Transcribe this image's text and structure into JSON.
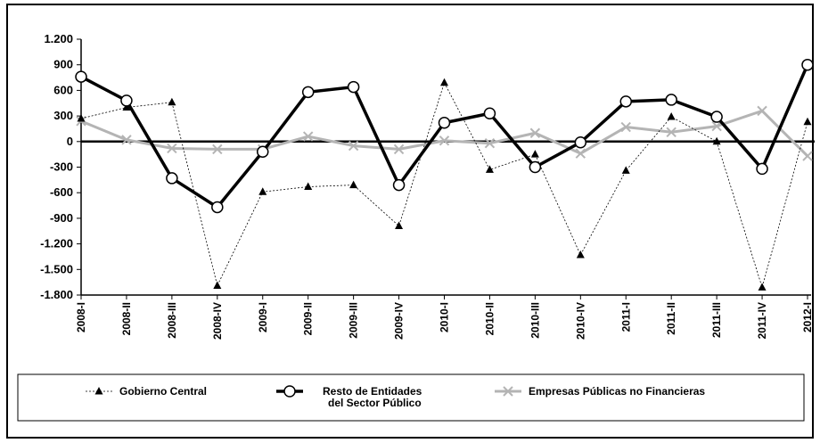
{
  "chart_data": {
    "type": "line",
    "title": "",
    "xlabel": "",
    "ylabel": "",
    "ylim": [
      -1800,
      1200
    ],
    "yticks": [
      1200,
      900,
      600,
      300,
      0,
      -300,
      -600,
      -900,
      -1200,
      -1500,
      -1800
    ],
    "ytick_labels": [
      "1.200",
      "900",
      "600",
      "300",
      "0",
      "-300",
      "-600",
      "-900",
      "-1.200",
      "-1.500",
      "-1.800"
    ],
    "categories": [
      "2008-I",
      "2008-II",
      "2008-III",
      "2008-IV",
      "2009-I",
      "2009-II",
      "2009-III",
      "2009-IV",
      "2010-I",
      "2010-II",
      "2010-III",
      "2010-IV",
      "2011-I",
      "2011-II",
      "2011-III",
      "2011-IV",
      "2012-I"
    ],
    "grid": false,
    "legend_position": "bottom",
    "series": [
      {
        "name": "Gobierno Central",
        "legend_lines": [
          "Gobierno Central"
        ],
        "color": "#000000",
        "style": "dotted",
        "marker": "triangle",
        "values": [
          270,
          400,
          460,
          -1690,
          -590,
          -530,
          -510,
          -990,
          690,
          -330,
          -150,
          -1330,
          -340,
          290,
          0,
          -1710,
          230
        ]
      },
      {
        "name": "Resto de Entidades del Sector Público",
        "legend_lines": [
          "Resto de Entidades",
          "del Sector Público"
        ],
        "color": "#000000",
        "style": "thick",
        "marker": "circle",
        "values": [
          760,
          480,
          -430,
          -770,
          -120,
          580,
          640,
          -510,
          220,
          330,
          -300,
          -10,
          470,
          490,
          290,
          -320,
          900
        ]
      },
      {
        "name": "Empresas Públicas no Financieras",
        "legend_lines": [
          "Empresas Públicas no Financieras"
        ],
        "color": "#b4b4b4",
        "style": "solid",
        "marker": "x",
        "values": [
          240,
          20,
          -80,
          -90,
          -90,
          60,
          -50,
          -90,
          10,
          -20,
          100,
          -140,
          170,
          110,
          180,
          360,
          -170
        ]
      }
    ]
  }
}
